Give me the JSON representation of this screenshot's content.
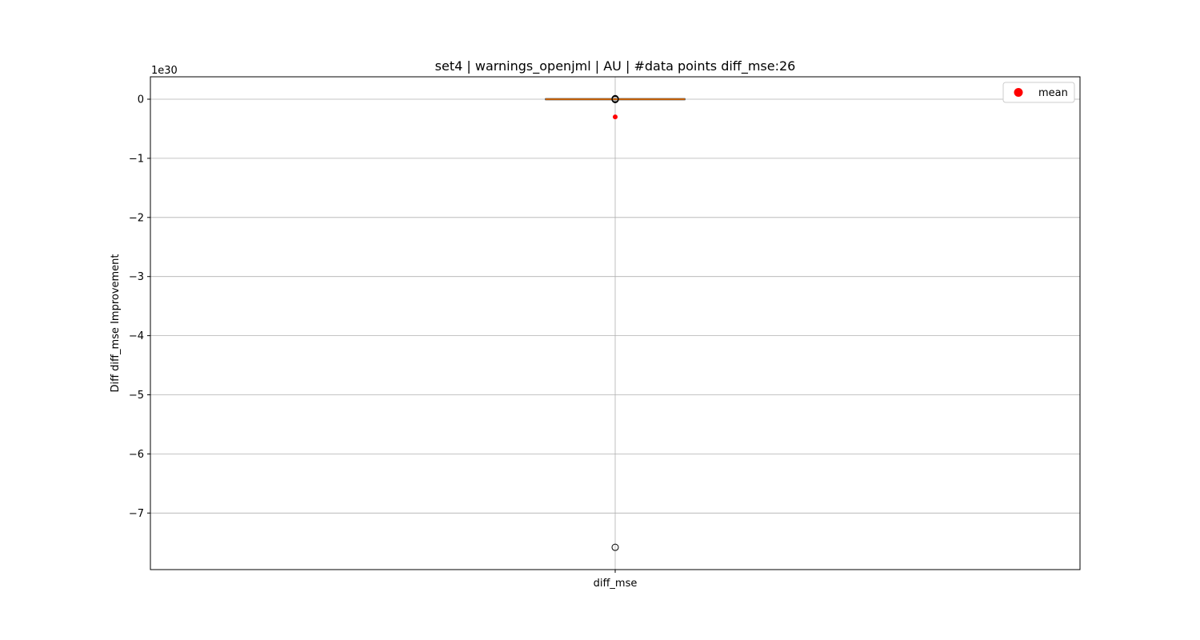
{
  "chart_data": {
    "type": "box",
    "title": "set4 | warnings_openjml | AU | #data points diff_mse:26",
    "xlabel": "",
    "ylabel": "Diff diff_mse Improvement",
    "y_multiplier": "1e30",
    "categories": [
      "diff_mse"
    ],
    "ylim": [
      -7.95,
      0.38
    ],
    "yticks": [
      0,
      -1,
      -2,
      -3,
      -4,
      -5,
      -6,
      -7
    ],
    "ytick_labels": [
      "0",
      "−1",
      "−2",
      "−3",
      "−4",
      "−5",
      "−6",
      "−7"
    ],
    "box": {
      "q1": -0.002,
      "median": 0,
      "q3": 0.002,
      "whisker_low": -0.004,
      "whisker_high": 0.004,
      "mean": -0.3,
      "outliers": [
        0.01,
        0.006,
        0.003,
        -0.003,
        -0.006,
        -7.58
      ]
    },
    "legend": {
      "entries": [
        {
          "name": "mean",
          "color": "#ff0000"
        }
      ],
      "placement": "upper right"
    },
    "grid": true,
    "colors": {
      "median": "#ff7f0e",
      "mean": "#ff0000",
      "box": "#000000",
      "grid": "#b0b0b0"
    }
  }
}
